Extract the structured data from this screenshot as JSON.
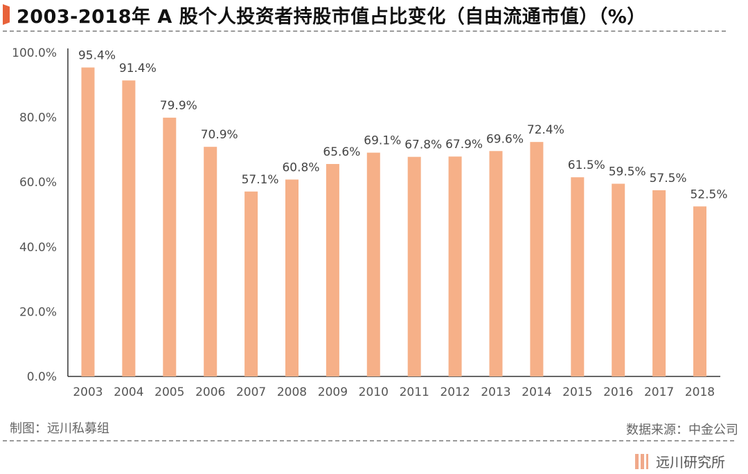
{
  "header": {
    "title": "2003-2018年 A 股个人投资者持股市值占比变化（自由流通市值）（%）"
  },
  "footer": {
    "credit": "制图：远川私募组",
    "source": "数据来源：中金公司",
    "logo_text": "远川研究所"
  },
  "colors": {
    "bar": "#f6b088",
    "accent": "#e8623a"
  },
  "chart_data": {
    "type": "bar",
    "title": "2003-2018年 A 股个人投资者持股市值占比变化（自由流通市值）（%）",
    "categories": [
      "2003",
      "2004",
      "2005",
      "2006",
      "2007",
      "2008",
      "2009",
      "2010",
      "2011",
      "2012",
      "2013",
      "2014",
      "2015",
      "2016",
      "2017",
      "2018"
    ],
    "values": [
      95.4,
      91.4,
      79.9,
      70.9,
      57.1,
      60.8,
      65.6,
      69.1,
      67.8,
      67.9,
      69.6,
      72.4,
      61.5,
      59.5,
      57.5,
      52.5
    ],
    "value_labels": [
      "95.4%",
      "91.4%",
      "79.9%",
      "70.9%",
      "57.1%",
      "60.8%",
      "65.6%",
      "69.1%",
      "67.8%",
      "67.9%",
      "69.6%",
      "72.4%",
      "61.5%",
      "59.5%",
      "57.5%",
      "52.5%"
    ],
    "yticks": [
      0,
      20,
      40,
      60,
      80,
      100
    ],
    "ytick_labels": [
      "0.0%",
      "20.0%",
      "40.0%",
      "60.0%",
      "80.0%",
      "100.0%"
    ],
    "ylim": [
      0,
      100
    ],
    "xlabel": "",
    "ylabel": "",
    "grid": false,
    "legend": "none"
  }
}
